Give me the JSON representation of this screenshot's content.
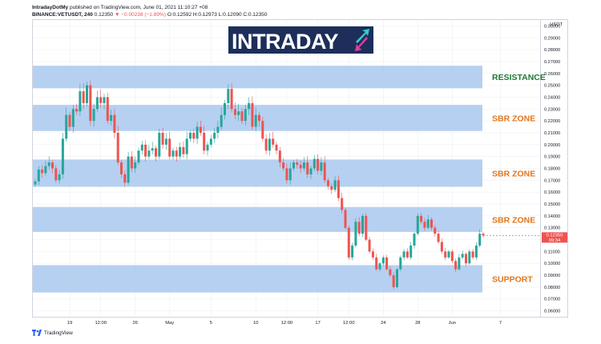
{
  "header": {
    "publisher": "IntradayDotMy",
    "published_text": "published on TradingView.com, June 01, 2021 11:10:27 +08",
    "symbol": "BINANCE:VETUSDT, 240",
    "last_price": "0.12350",
    "change": "▼ −0.00238 (−1.89%)",
    "ohlc": "O:0.12592 H:0.12973 L:0.12090 C:0.12350"
  },
  "footer": {
    "brand": "TradingView"
  },
  "logo": {
    "text": "INTRADAY"
  },
  "axis": {
    "currency": "USDT",
    "price_label": "0.12350",
    "countdown": "09:34"
  },
  "colors": {
    "zone_fill": "#a9c8ef",
    "resistance_text": "#1e7b34",
    "zone_text": "#e0761f",
    "support_text": "#e0761f",
    "up_candle": "#26a69a",
    "down_candle": "#ef5350",
    "logo_bg": "#1d2e5a"
  },
  "chart_data": {
    "type": "candlestick",
    "title": "",
    "xlabel": "",
    "ylabel": "",
    "ylim": [
      0.055,
      0.305
    ],
    "y_ticks": [
      "0.06000",
      "0.07000",
      "0.08000",
      "0.09000",
      "0.10000",
      "0.11000",
      "0.12000",
      "0.13000",
      "0.14000",
      "0.15000",
      "0.16000",
      "0.17000",
      "0.18000",
      "0.19000",
      "0.20000",
      "0.21000",
      "0.22000",
      "0.23000",
      "0.24000",
      "0.25000",
      "0.26000",
      "0.27000",
      "0.28000",
      "0.29000",
      "0.30000"
    ],
    "x_ticks": [
      {
        "label": "19",
        "i": 10
      },
      {
        "label": "12:00",
        "i": 19
      },
      {
        "label": "26",
        "i": 29
      },
      {
        "label": "May",
        "i": 39
      },
      {
        "label": "5",
        "i": 51
      },
      {
        "label": "10",
        "i": 64
      },
      {
        "label": "12:00",
        "i": 73
      },
      {
        "label": "17",
        "i": 82
      },
      {
        "label": "12:00",
        "i": 91
      },
      {
        "label": "24",
        "i": 101
      },
      {
        "label": "28",
        "i": 111
      },
      {
        "label": "Jun",
        "i": 121
      },
      {
        "label": "7",
        "i": 135
      }
    ],
    "zones": [
      {
        "label": "RESISTANCE",
        "kind": "resistance",
        "low": 0.2475,
        "high": 0.2665
      },
      {
        "label": "SBR ZONE",
        "kind": "sbr",
        "low": 0.2115,
        "high": 0.2335
      },
      {
        "label": "SBR ZONE",
        "kind": "sbr",
        "low": 0.1645,
        "high": 0.1875
      },
      {
        "label": "SBR ZONE",
        "kind": "sbr",
        "low": 0.1265,
        "high": 0.1475
      },
      {
        "label": "SUPPORT",
        "kind": "support",
        "low": 0.0755,
        "high": 0.0985
      }
    ],
    "closes": [
      0.169,
      0.179,
      0.176,
      0.182,
      0.185,
      0.18,
      0.17,
      0.175,
      0.205,
      0.225,
      0.215,
      0.23,
      0.228,
      0.245,
      0.235,
      0.25,
      0.22,
      0.23,
      0.24,
      0.235,
      0.24,
      0.22,
      0.225,
      0.21,
      0.185,
      0.175,
      0.168,
      0.19,
      0.18,
      0.185,
      0.195,
      0.2,
      0.19,
      0.195,
      0.197,
      0.19,
      0.21,
      0.2,
      0.205,
      0.19,
      0.195,
      0.19,
      0.198,
      0.192,
      0.205,
      0.21,
      0.205,
      0.215,
      0.21,
      0.195,
      0.2,
      0.205,
      0.21,
      0.215,
      0.225,
      0.235,
      0.247,
      0.23,
      0.225,
      0.228,
      0.22,
      0.23,
      0.235,
      0.215,
      0.225,
      0.22,
      0.205,
      0.195,
      0.205,
      0.2,
      0.195,
      0.185,
      0.18,
      0.17,
      0.18,
      0.185,
      0.183,
      0.18,
      0.185,
      0.175,
      0.18,
      0.188,
      0.178,
      0.185,
      0.17,
      0.165,
      0.162,
      0.17,
      0.155,
      0.145,
      0.13,
      0.105,
      0.115,
      0.135,
      0.125,
      0.14,
      0.12,
      0.11,
      0.105,
      0.095,
      0.1,
      0.105,
      0.095,
      0.09,
      0.08,
      0.095,
      0.105,
      0.11,
      0.105,
      0.115,
      0.125,
      0.14,
      0.135,
      0.13,
      0.137,
      0.13,
      0.125,
      0.118,
      0.11,
      0.105,
      0.11,
      0.102,
      0.095,
      0.105,
      0.108,
      0.1,
      0.11,
      0.105,
      0.115,
      0.125,
      0.1235
    ]
  }
}
